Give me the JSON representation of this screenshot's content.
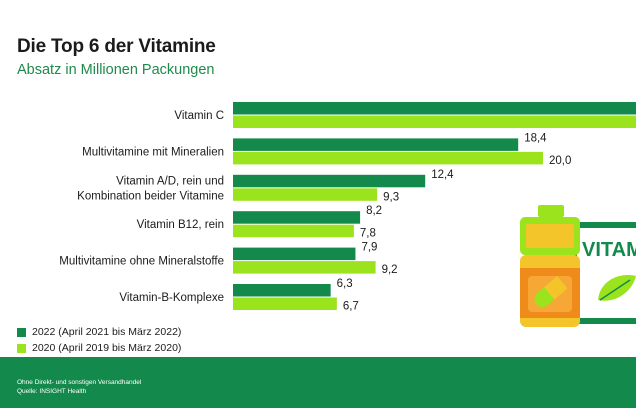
{
  "header": {
    "title": "Die Top 6 der Vitamine",
    "subtitle": "Absatz in Millionen Packungen"
  },
  "colors": {
    "series_2022": "#138a4b",
    "series_2020": "#9be31d",
    "subtitle": "#1f8a4c",
    "footer_bg": "#138a4b"
  },
  "chart_data": {
    "type": "bar",
    "orientation": "horizontal",
    "categories": [
      "Vitamin C",
      "Multivitamine mit Mineralien",
      "Vitamin A/D, rein und Kombination beider Vitamine",
      "Vitamin B12, rein",
      "Multivitamine ohne Mineralstoffe",
      "Vitamin-B-Komplexe"
    ],
    "category_display": [
      [
        "Vitamin C"
      ],
      [
        "Multivitamine mit Mineralien"
      ],
      [
        "Vitamin A/D, rein und",
        "Kombination beider Vitamine"
      ],
      [
        "Vitamin B12, rein"
      ],
      [
        "Multivitamine ohne Mineralstoffe"
      ],
      [
        "Vitamin-B-Komplexe"
      ]
    ],
    "series": [
      {
        "name": "2022 (April 2021 bis März 2022)",
        "values": [
          26.0,
          18.4,
          12.4,
          8.2,
          7.9,
          6.3
        ],
        "labels": [
          "",
          "18,4",
          "12,4",
          "8,2",
          "7,9",
          "6,3"
        ]
      },
      {
        "name": "2020 (April 2019 bis März 2020)",
        "values": [
          26.0,
          20.0,
          9.3,
          7.8,
          9.2,
          6.7
        ],
        "labels": [
          "",
          "20,0",
          "9,3",
          "7,8",
          "9,2",
          "6,7"
        ]
      }
    ],
    "xlim": [
      0,
      26
    ],
    "grid": false,
    "legend_position": "bottom-left"
  },
  "illustration": {
    "icon": "vitamin-bottle-icon",
    "label_text": "VITAM"
  },
  "footer": {
    "line1": "Ohne Direkt- und sonstigen Versandhandel",
    "line2": "Quelle: INSIGHT Health"
  }
}
